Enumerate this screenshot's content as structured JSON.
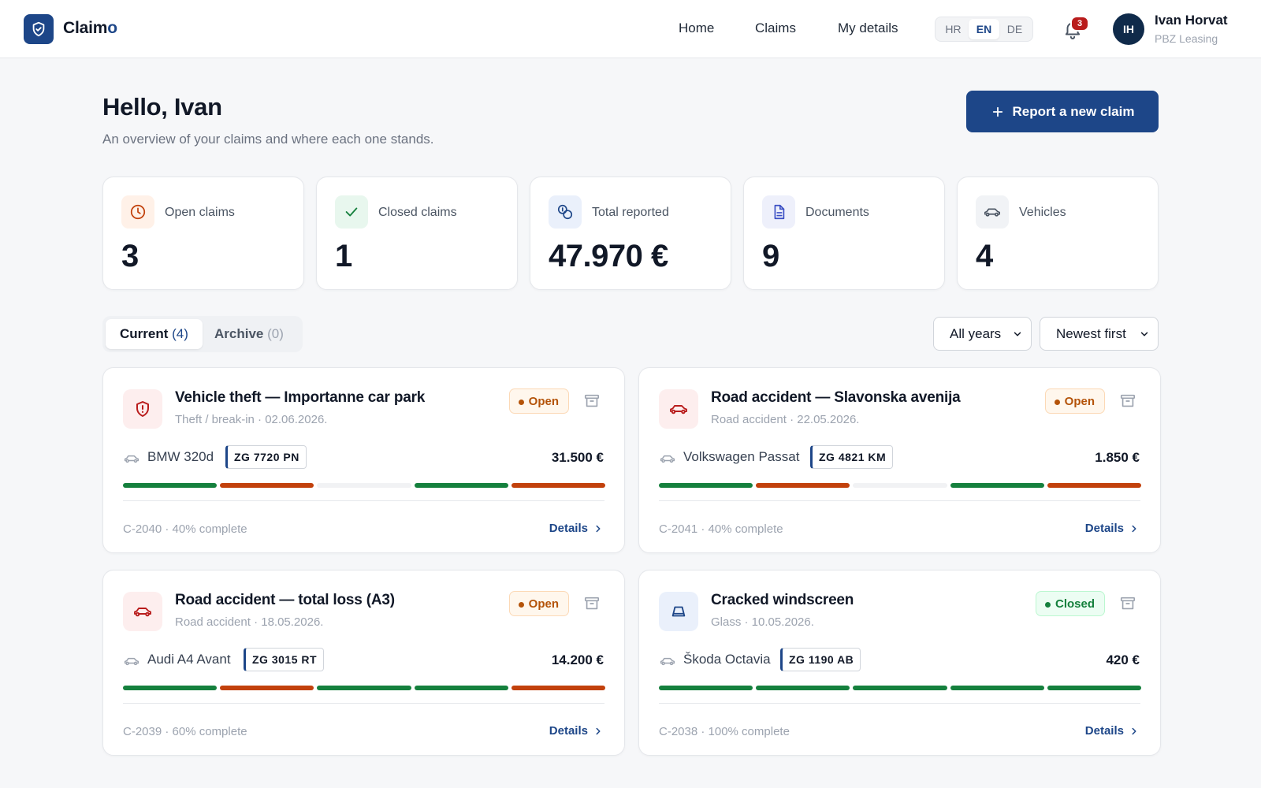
{
  "app": {
    "brand_main": "Claim",
    "brand_accent": "o",
    "brand_color": "#1d4688"
  },
  "nav": {
    "home": "Home",
    "claims": "Claims",
    "my_details": "My details"
  },
  "languages": {
    "hr": "HR",
    "en": "EN",
    "de": "DE",
    "active": "EN"
  },
  "notifications": {
    "count": "3",
    "icon": "bell-icon"
  },
  "user": {
    "initials": "IH",
    "name": "Ivan Horvat",
    "company": "PBZ Leasing"
  },
  "header": {
    "greeting": "Hello, Ivan",
    "subtitle": "An overview of your claims and where each one stands.",
    "cta_label": "Report a new claim"
  },
  "stats": [
    {
      "label": "Open claims",
      "value": "3",
      "icon": "clock-icon"
    },
    {
      "label": "Closed claims",
      "value": "1",
      "icon": "check-icon"
    },
    {
      "label": "Total reported",
      "value": "47.970 €",
      "icon": "coins-icon"
    },
    {
      "label": "Documents",
      "value": "9",
      "icon": "document-icon"
    },
    {
      "label": "Vehicles",
      "value": "4",
      "icon": "car-icon"
    }
  ],
  "tabs": {
    "current_label": "Current",
    "current_count": "(4)",
    "archive_label": "Archive",
    "archive_count": "(0)"
  },
  "filters": {
    "year": "All years",
    "sort": "Newest first"
  },
  "colors": {
    "done": "#15803d",
    "issue": "#c2410c",
    "pending": "#f1f2f4",
    "open": "#b45309",
    "closed": "#15803d"
  },
  "claims": [
    {
      "title": "Vehicle theft — Importanne car park",
      "subtitle": "Theft / break-in · 02.06.2026.",
      "status": "Open",
      "vehicle": "BMW 320d",
      "plate": "ZG 7720 PN",
      "amount": "31.500 €",
      "progress": [
        "done",
        "issue",
        "pending",
        "done",
        "issue"
      ],
      "meta": "C-2040 · 40% complete",
      "details": "Details",
      "icon": "shield-alert-icon"
    },
    {
      "title": "Road accident — Slavonska avenija",
      "subtitle": "Road accident · 22.05.2026.",
      "status": "Open",
      "vehicle": "Volkswagen Passat",
      "plate": "ZG 4821 KM",
      "amount": "1.850 €",
      "progress": [
        "done",
        "issue",
        "pending",
        "done",
        "issue"
      ],
      "meta": "C-2041 · 40% complete",
      "details": "Details",
      "icon": "car-crash-icon"
    },
    {
      "title": "Road accident — total loss (A3)",
      "subtitle": "Road accident · 18.05.2026.",
      "status": "Open",
      "vehicle": "Audi A4 Avant",
      "plate": "ZG 3015 RT",
      "amount": "14.200 €",
      "progress": [
        "done",
        "issue",
        "done",
        "done",
        "issue"
      ],
      "meta": "C-2039 · 60% complete",
      "details": "Details",
      "icon": "car-crash-icon"
    },
    {
      "title": "Cracked windscreen",
      "subtitle": "Glass · 10.05.2026.",
      "status": "Closed",
      "vehicle": "Škoda Octavia",
      "plate": "ZG 1190 AB",
      "amount": "420 €",
      "progress": [
        "done",
        "done",
        "done",
        "done",
        "done"
      ],
      "meta": "C-2038 · 100% complete",
      "details": "Details",
      "icon": "windscreen-icon"
    }
  ]
}
